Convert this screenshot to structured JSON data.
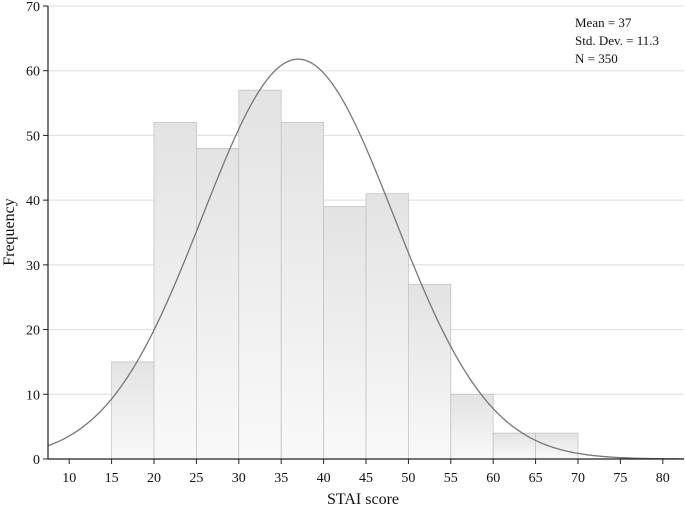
{
  "chart_data": {
    "type": "bar",
    "subtype": "histogram",
    "bins": [
      {
        "from": 15,
        "to": 20,
        "value": 15
      },
      {
        "from": 20,
        "to": 25,
        "value": 52
      },
      {
        "from": 25,
        "to": 30,
        "value": 48
      },
      {
        "from": 30,
        "to": 35,
        "value": 57
      },
      {
        "from": 35,
        "to": 40,
        "value": 52
      },
      {
        "from": 40,
        "to": 45,
        "value": 39
      },
      {
        "from": 45,
        "to": 50,
        "value": 41
      },
      {
        "from": 50,
        "to": 55,
        "value": 27
      },
      {
        "from": 55,
        "to": 60,
        "value": 10
      },
      {
        "from": 60,
        "to": 65,
        "value": 4
      },
      {
        "from": 65,
        "to": 70,
        "value": 4
      }
    ],
    "normal_curve": {
      "mean": 37,
      "sd": 11.3,
      "n": 350,
      "bin_width": 5
    },
    "xlabel": "STAI score",
    "ylabel": "Frequency",
    "xlim": [
      7.5,
      82.5
    ],
    "ylim": [
      0,
      70
    ],
    "xticks": [
      10,
      15,
      20,
      25,
      30,
      35,
      40,
      45,
      50,
      55,
      60,
      65,
      70,
      75,
      80
    ],
    "yticks": [
      0,
      10,
      20,
      30,
      40,
      50,
      60,
      70
    ],
    "grid": true,
    "stats_box": {
      "position": "top-right",
      "lines": [
        "Mean = 37",
        "Std. Dev. = 11.3",
        "N = 350"
      ]
    },
    "colors": {
      "bar_fill_top": "#e3e3e3",
      "bar_fill_bottom": "#f9f9f9",
      "bar_stroke": "#c4c4c4",
      "curve": "#777777",
      "grid": "#dddddd",
      "axis": "#222222"
    }
  }
}
